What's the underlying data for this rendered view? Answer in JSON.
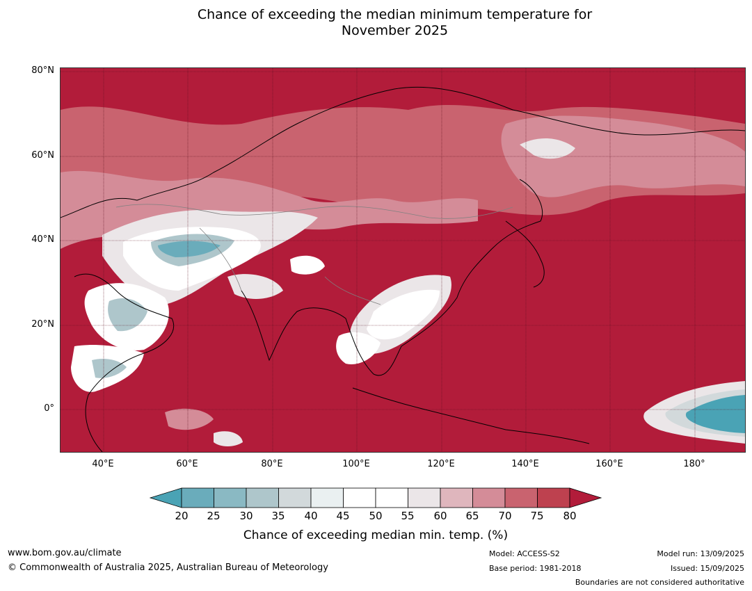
{
  "title_line1": "Chance of exceeding the median minimum temperature for",
  "title_line2": "November 2025",
  "y_ticks": [
    "80°N",
    "60°N",
    "40°N",
    "20°N",
    "0°"
  ],
  "x_ticks": [
    "40°E",
    "60°E",
    "80°E",
    "100°E",
    "120°E",
    "140°E",
    "160°E",
    "180°"
  ],
  "colorbar": {
    "ticks": [
      "20",
      "25",
      "30",
      "35",
      "40",
      "45",
      "50",
      "55",
      "60",
      "65",
      "70",
      "75",
      "80"
    ],
    "colors": [
      "#4aa3b5",
      "#6aacbb",
      "#8ab9c3",
      "#aec6cb",
      "#d2d9db",
      "#eaf0f1",
      "#ffffff",
      "#ffffff",
      "#ebe6e8",
      "#dfb6bd",
      "#d48c98",
      "#c9636f",
      "#be414f",
      "#b21c3a"
    ],
    "label": "Chance of exceeding median min. temp. (%)"
  },
  "footer": {
    "url": "www.bom.gov.au/climate",
    "copyright": "© Commonwealth of Australia 2025, Australian Bureau of Meteorology",
    "model": "Model: ACCESS-S2",
    "base_period": "Base period: 1981-2018",
    "model_run": "Model run: 13/09/2025",
    "issued": "Issued: 15/09/2025",
    "boundaries": "Boundaries are not considered authoritative"
  }
}
